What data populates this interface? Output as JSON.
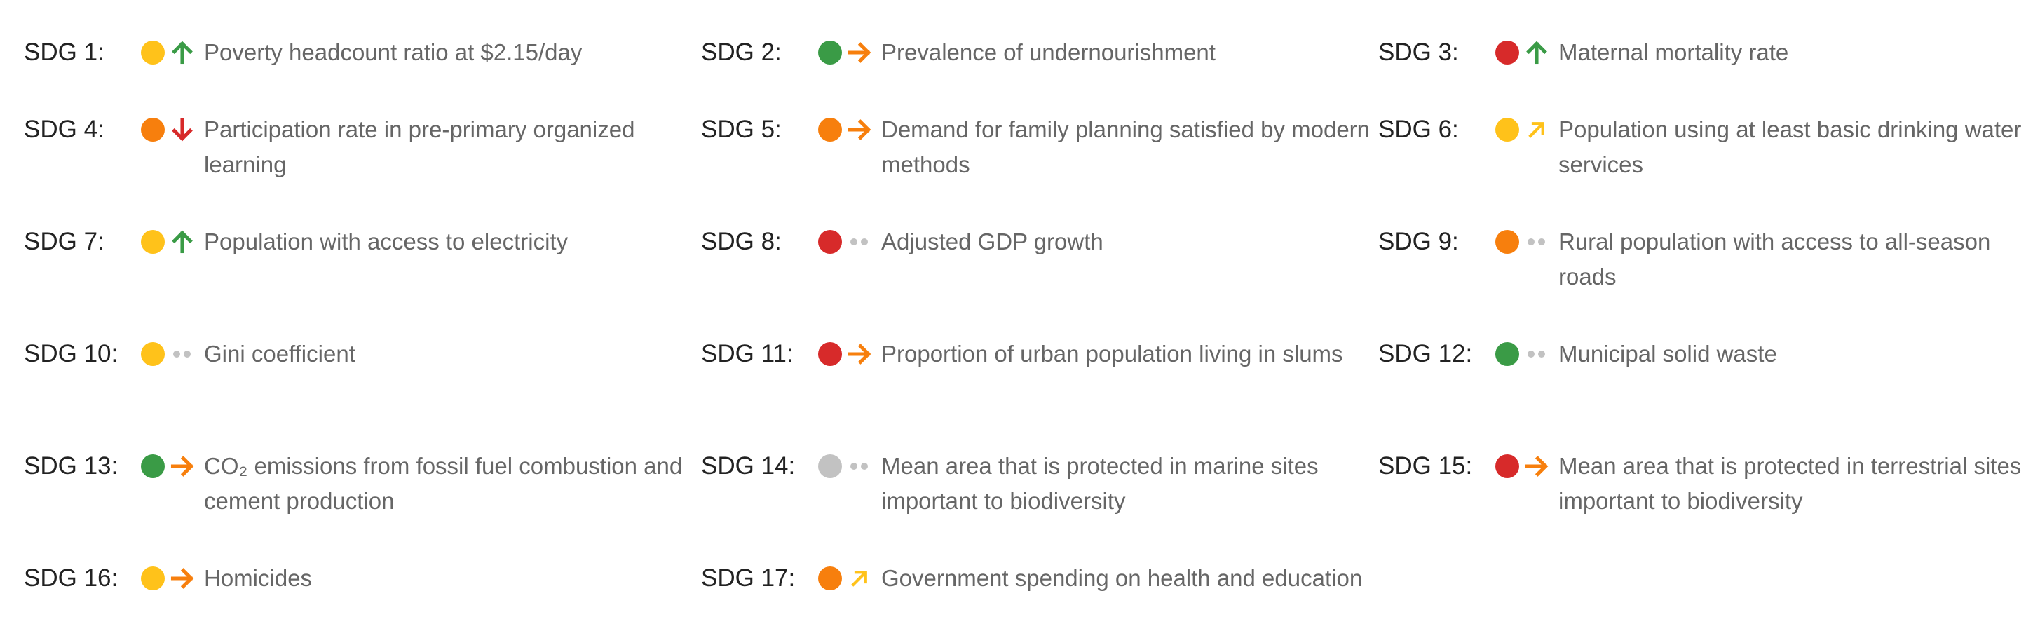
{
  "colors": {
    "yellow": "#ffc21a",
    "green": "#3a9b46",
    "red": "#d72a2a",
    "orange": "#f77f0d",
    "grey": "#c2c2c2"
  },
  "items": [
    {
      "label": "SDG 1:",
      "status": "yellow",
      "trend": "up-arrow",
      "indicator": "Poverty headcount ratio at $2.15/day"
    },
    {
      "label": "SDG 2:",
      "status": "green",
      "trend": "right-arrow",
      "indicator": "Prevalence of undernourishment"
    },
    {
      "label": "SDG 3:",
      "status": "red",
      "trend": "up-arrow",
      "indicator": "Maternal mortality rate"
    },
    {
      "label": "SDG 4:",
      "status": "orange",
      "trend": "down-arrow",
      "indicator": "Participation rate in pre-primary organized learning"
    },
    {
      "label": "SDG 5:",
      "status": "orange",
      "trend": "right-arrow",
      "indicator": "Demand for family planning satisfied by modern methods"
    },
    {
      "label": "SDG 6:",
      "status": "yellow",
      "trend": "up-right-arrow",
      "indicator": "Population using at least basic drinking water services"
    },
    {
      "label": "SDG 7:",
      "status": "yellow",
      "trend": "up-arrow",
      "indicator": "Population with access to electricity"
    },
    {
      "label": "SDG 8:",
      "status": "red",
      "trend": "no-data-dots",
      "indicator": "Adjusted GDP growth"
    },
    {
      "label": "SDG 9:",
      "status": "orange",
      "trend": "no-data-dots",
      "indicator": "Rural population with access to all-season roads"
    },
    {
      "label": "SDG 10:",
      "status": "yellow",
      "trend": "no-data-dots",
      "indicator": "Gini coefficient"
    },
    {
      "label": "SDG 11:",
      "status": "red",
      "trend": "right-arrow",
      "indicator": "Proportion of urban population living in slums"
    },
    {
      "label": "SDG 12:",
      "status": "green",
      "trend": "no-data-dots",
      "indicator": "Municipal solid waste"
    },
    {
      "label": "SDG 13:",
      "status": "green",
      "trend": "right-arrow",
      "indicator": "CO₂ emissions from fossil fuel combustion and cement production"
    },
    {
      "label": "SDG 14:",
      "status": "grey",
      "trend": "no-data-dots",
      "indicator": "Mean area that is protected in marine sites important to biodiversity"
    },
    {
      "label": "SDG 15:",
      "status": "red",
      "trend": "right-arrow",
      "indicator": "Mean area that is protected in terrestrial sites important to biodiversity"
    },
    {
      "label": "SDG 16:",
      "status": "yellow",
      "trend": "right-arrow",
      "indicator": "Homicides"
    },
    {
      "label": "SDG 17:",
      "status": "orange",
      "trend": "up-right-arrow-yellow",
      "indicator": "Government spending on health and education"
    }
  ]
}
